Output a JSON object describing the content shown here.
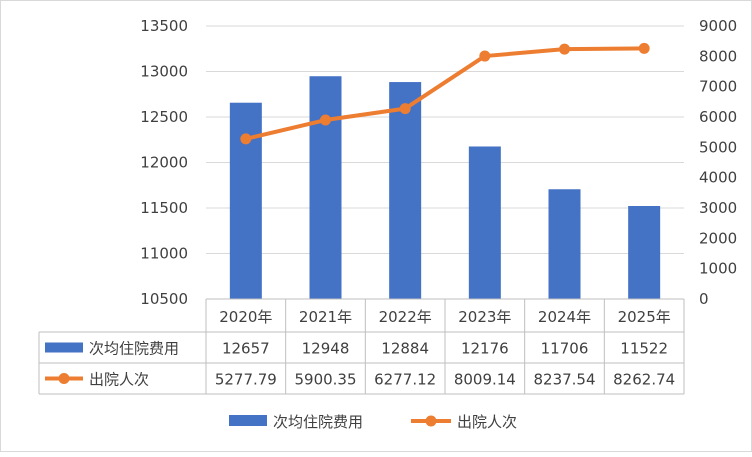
{
  "chart_data": {
    "type": "bar",
    "categories": [
      "2020年",
      "2021年",
      "2022年",
      "2023年",
      "2024年",
      "2025年"
    ],
    "series": [
      {
        "name": "次均住院费用",
        "type": "bar",
        "axis": "left",
        "values": [
          12657,
          12948,
          12884,
          12176,
          11706,
          11522
        ],
        "color": "#4472c4"
      },
      {
        "name": "出院人次",
        "type": "line",
        "axis": "right",
        "values": [
          5277.79,
          5900.35,
          6277.12,
          8009.14,
          8237.54,
          8262.74
        ],
        "color": "#ed7d31"
      }
    ],
    "value_labels": [
      [
        "12657",
        "12948",
        "12884",
        "12176",
        "11706",
        "11522"
      ],
      [
        "5277.79",
        "5900.35",
        "6277.12",
        "8009.14",
        "8237.54",
        "8262.74"
      ]
    ],
    "y_left": {
      "min": 10500,
      "max": 13500,
      "ticks": [
        "10500",
        "11000",
        "11500",
        "12000",
        "12500",
        "13000",
        "13500"
      ]
    },
    "y_right": {
      "min": 0,
      "max": 9000,
      "ticks": [
        "0",
        "1000",
        "2000",
        "3000",
        "4000",
        "5000",
        "6000",
        "7000",
        "8000",
        "9000"
      ]
    },
    "grid": true,
    "data_table": true,
    "legend_position": "bottom"
  }
}
